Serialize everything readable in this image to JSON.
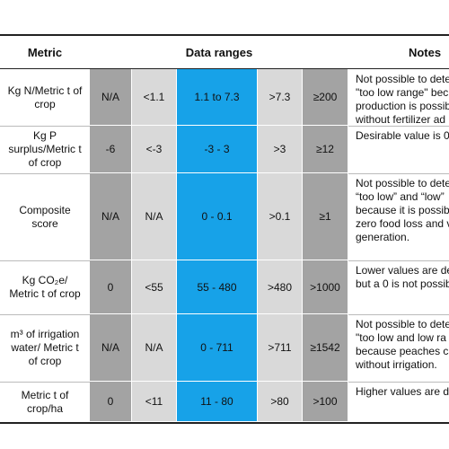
{
  "header": {
    "metric": "Metric",
    "ranges": "Data ranges",
    "notes": "Notes"
  },
  "rows": [
    {
      "metric": "Kg N/Metric t of crop",
      "ranges": [
        "N/A",
        "<1.1",
        "1.1 to 7.3",
        ">7.3",
        "≥200"
      ],
      "notes": [
        "Not possible to dete",
        "\"too low range\" bec",
        "production is possib",
        "without fertilizer ad"
      ]
    },
    {
      "metric": "Kg P surplus/Metric t of crop",
      "ranges": [
        "-6",
        "<-3",
        "-3 - 3",
        ">3",
        "≥12"
      ],
      "notes": [
        "Desirable value is 0."
      ]
    },
    {
      "metric": "Composite score",
      "ranges": [
        "N/A",
        "N/A",
        "0 - 0.1",
        ">0.1",
        "≥1"
      ],
      "notes": [
        "Not possible to dete",
        "“too low” and “low”",
        "because it is possibl",
        "zero food loss and v",
        "generation."
      ]
    },
    {
      "metric": "Kg CO₂e/ Metric t of crop",
      "ranges": [
        "0",
        "<55",
        "55 - 480",
        ">480",
        ">1000"
      ],
      "notes": [
        "Lower values are de",
        "but a 0 is not possib"
      ]
    },
    {
      "metric": "m³ of irrigation water/ Metric t of crop",
      "ranges": [
        "N/A",
        "N/A",
        "0 - 711",
        ">711",
        "≥1542"
      ],
      "notes": [
        "Not possible to dete",
        "\"too low and low ra",
        "because peaches ca",
        "without irrigation."
      ]
    },
    {
      "metric": "Metric t of crop/ha",
      "ranges": [
        "0",
        "<11",
        "11 - 80",
        ">80",
        ">100"
      ],
      "notes": [
        "Higher values are de"
      ]
    }
  ]
}
